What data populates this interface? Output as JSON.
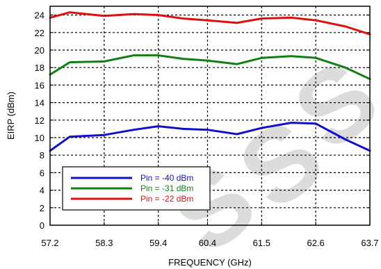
{
  "chart_data": {
    "type": "line",
    "xlabel": "FREQUENCY (GHz)",
    "ylabel": "EIRP (dBm)",
    "xlim": [
      57.2,
      63.7
    ],
    "ylim": [
      0,
      25
    ],
    "x_ticks": [
      "57.2",
      "58.3",
      "59.4",
      "60.4",
      "61.5",
      "62.6",
      "63.7"
    ],
    "y_ticks": [
      "0",
      "2",
      "4",
      "6",
      "8",
      "10",
      "12",
      "14",
      "16",
      "18",
      "20",
      "22",
      "24"
    ],
    "grid": true,
    "legend_position": "bottom-left",
    "series": [
      {
        "name": "Pin = -40 dBm",
        "color": "#1010cc",
        "x": [
          57.2,
          57.6,
          58.3,
          58.9,
          59.4,
          59.9,
          60.4,
          61.0,
          61.5,
          62.1,
          62.6,
          63.2,
          63.7
        ],
        "values": [
          8.5,
          10.1,
          10.3,
          10.9,
          11.3,
          11.0,
          10.9,
          10.4,
          11.1,
          11.7,
          11.6,
          9.8,
          8.5
        ]
      },
      {
        "name": "Pin = -31 dBm",
        "color": "#108010",
        "x": [
          57.2,
          57.6,
          58.3,
          58.9,
          59.4,
          59.9,
          60.4,
          61.0,
          61.5,
          62.1,
          62.6,
          63.2,
          63.7
        ],
        "values": [
          17.2,
          18.6,
          18.7,
          19.4,
          19.4,
          19.0,
          18.8,
          18.4,
          19.1,
          19.3,
          19.1,
          18.0,
          16.7
        ]
      },
      {
        "name": "Pin = -22 dBm",
        "color": "#dd1010",
        "x": [
          57.2,
          57.6,
          58.3,
          58.9,
          59.4,
          59.9,
          60.4,
          61.0,
          61.5,
          62.1,
          62.6,
          63.2,
          63.7
        ],
        "values": [
          23.7,
          24.3,
          23.9,
          24.1,
          24.0,
          23.6,
          23.4,
          23.1,
          23.6,
          23.7,
          23.4,
          22.7,
          21.8
        ]
      }
    ]
  },
  "watermark": {
    "color": "#d6d6d6"
  }
}
